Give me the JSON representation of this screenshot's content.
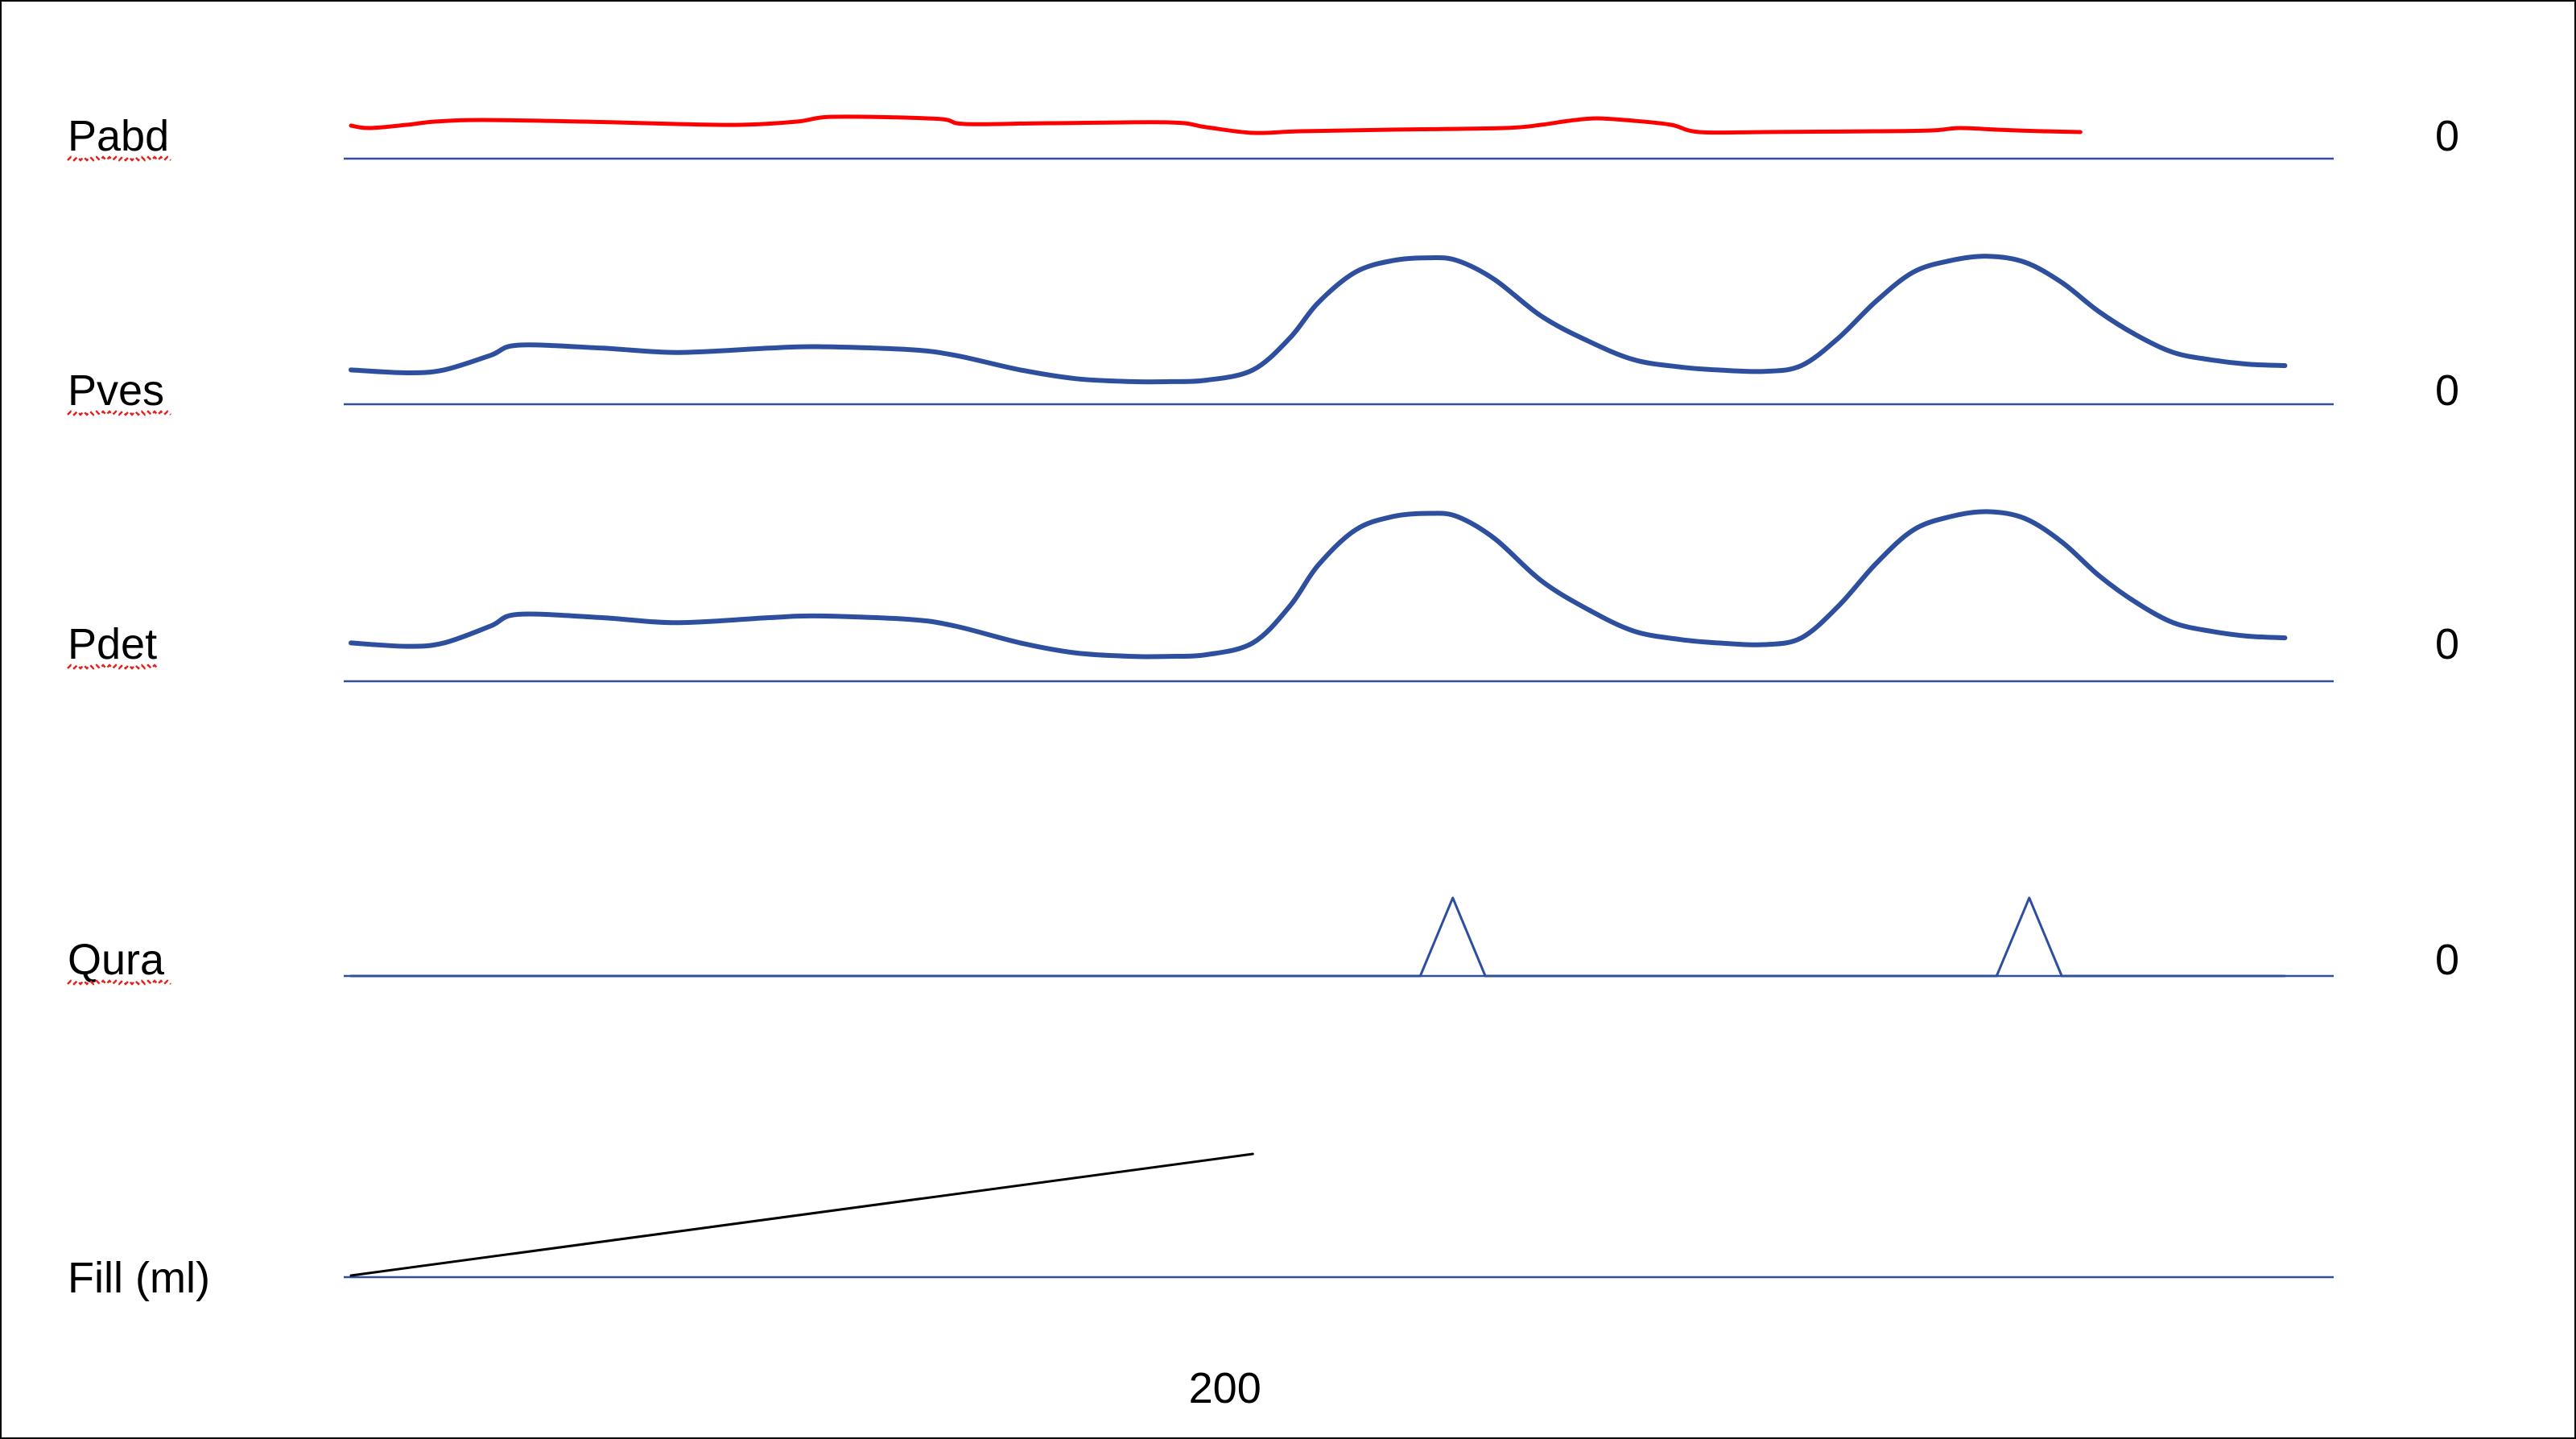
{
  "chart_data": {
    "type": "line",
    "tracks": [
      {
        "name": "Pabd",
        "baseline_label": "0",
        "color": "#ff0000",
        "underline": true,
        "values": [
          [
            0,
            0.62
          ],
          [
            0.02,
            0.56
          ],
          [
            0.06,
            0.64
          ],
          [
            0.09,
            0.72
          ],
          [
            0.14,
            0.76
          ],
          [
            0.25,
            0.72
          ],
          [
            0.35,
            0.66
          ],
          [
            0.42,
            0.64
          ],
          [
            0.48,
            0.72
          ],
          [
            0.52,
            0.84
          ],
          [
            0.63,
            0.79
          ],
          [
            0.66,
            0.66
          ],
          [
            0.75,
            0.68
          ],
          [
            0.88,
            0.7
          ],
          [
            0.92,
            0.58
          ],
          [
            0.97,
            0.44
          ],
          [
            1.02,
            0.48
          ],
          [
            1.12,
            0.52
          ],
          [
            1.24,
            0.56
          ],
          [
            1.28,
            0.64
          ],
          [
            1.31,
            0.74
          ],
          [
            1.34,
            0.8
          ],
          [
            1.38,
            0.74
          ],
          [
            1.42,
            0.64
          ],
          [
            1.45,
            0.46
          ],
          [
            1.52,
            0.46
          ],
          [
            1.64,
            0.48
          ],
          [
            1.7,
            0.5
          ],
          [
            1.73,
            0.56
          ],
          [
            1.77,
            0.52
          ],
          [
            1.82,
            0.48
          ],
          [
            1.86,
            0.46
          ]
        ]
      },
      {
        "name": "Pves",
        "baseline_label": "0",
        "color": "#2e4f9e",
        "underline": true,
        "values": [
          [
            0,
            0.18
          ],
          [
            0.06,
            0.16
          ],
          [
            0.1,
            0.18
          ],
          [
            0.15,
            0.28
          ],
          [
            0.18,
            0.35
          ],
          [
            0.27,
            0.33
          ],
          [
            0.35,
            0.3
          ],
          [
            0.45,
            0.33
          ],
          [
            0.5,
            0.34
          ],
          [
            0.6,
            0.32
          ],
          [
            0.65,
            0.28
          ],
          [
            0.72,
            0.18
          ],
          [
            0.78,
            0.12
          ],
          [
            0.84,
            0.1
          ],
          [
            0.88,
            0.1
          ],
          [
            0.92,
            0.11
          ],
          [
            0.97,
            0.18
          ],
          [
            1.01,
            0.4
          ],
          [
            1.04,
            0.64
          ],
          [
            1.08,
            0.85
          ],
          [
            1.12,
            0.93
          ],
          [
            1.16,
            0.95
          ],
          [
            1.19,
            0.93
          ],
          [
            1.23,
            0.8
          ],
          [
            1.28,
            0.55
          ],
          [
            1.33,
            0.38
          ],
          [
            1.38,
            0.25
          ],
          [
            1.43,
            0.2
          ],
          [
            1.47,
            0.18
          ],
          [
            1.52,
            0.17
          ],
          [
            1.56,
            0.21
          ],
          [
            1.6,
            0.4
          ],
          [
            1.64,
            0.65
          ],
          [
            1.68,
            0.85
          ],
          [
            1.72,
            0.93
          ],
          [
            1.76,
            0.96
          ],
          [
            1.8,
            0.92
          ],
          [
            1.84,
            0.78
          ],
          [
            1.88,
            0.58
          ],
          [
            1.92,
            0.42
          ],
          [
            1.96,
            0.3
          ],
          [
            2.0,
            0.25
          ],
          [
            2.04,
            0.22
          ],
          [
            2.08,
            0.21
          ]
        ]
      },
      {
        "name": "Pdet",
        "baseline_label": "0",
        "color": "#2e4f9e",
        "underline": true,
        "values": [
          [
            0,
            0.18
          ],
          [
            0.06,
            0.16
          ],
          [
            0.1,
            0.18
          ],
          [
            0.15,
            0.28
          ],
          [
            0.18,
            0.35
          ],
          [
            0.27,
            0.33
          ],
          [
            0.35,
            0.3
          ],
          [
            0.45,
            0.33
          ],
          [
            0.5,
            0.34
          ],
          [
            0.6,
            0.32
          ],
          [
            0.65,
            0.28
          ],
          [
            0.72,
            0.18
          ],
          [
            0.78,
            0.12
          ],
          [
            0.84,
            0.1
          ],
          [
            0.88,
            0.1
          ],
          [
            0.92,
            0.11
          ],
          [
            0.97,
            0.18
          ],
          [
            1.01,
            0.4
          ],
          [
            1.04,
            0.64
          ],
          [
            1.08,
            0.85
          ],
          [
            1.12,
            0.93
          ],
          [
            1.16,
            0.95
          ],
          [
            1.19,
            0.93
          ],
          [
            1.23,
            0.8
          ],
          [
            1.28,
            0.55
          ],
          [
            1.33,
            0.38
          ],
          [
            1.38,
            0.25
          ],
          [
            1.43,
            0.2
          ],
          [
            1.47,
            0.18
          ],
          [
            1.52,
            0.17
          ],
          [
            1.56,
            0.21
          ],
          [
            1.6,
            0.4
          ],
          [
            1.64,
            0.65
          ],
          [
            1.68,
            0.85
          ],
          [
            1.72,
            0.93
          ],
          [
            1.76,
            0.96
          ],
          [
            1.8,
            0.92
          ],
          [
            1.84,
            0.78
          ],
          [
            1.88,
            0.58
          ],
          [
            1.92,
            0.42
          ],
          [
            1.96,
            0.3
          ],
          [
            2.0,
            0.25
          ],
          [
            2.04,
            0.22
          ],
          [
            2.08,
            0.21
          ]
        ]
      },
      {
        "name": "Qura",
        "baseline_label": "0",
        "color": "#2e4f9e",
        "underline": true,
        "values": [
          [
            0,
            0
          ],
          [
            1.15,
            0
          ],
          [
            1.185,
            1
          ],
          [
            1.22,
            0
          ],
          [
            1.77,
            0
          ],
          [
            1.805,
            1
          ],
          [
            1.84,
            0
          ],
          [
            2.08,
            0
          ]
        ]
      },
      {
        "name": "Fill (ml)",
        "baseline_label": "",
        "color": "#000000",
        "underline": false,
        "values": [
          [
            0,
            0
          ],
          [
            0.97,
            1
          ]
        ]
      }
    ],
    "xlim": [
      0,
      2.08
    ],
    "x_tick_label": "200",
    "x_tick_value": 0.94,
    "baseline_color": "#2e4f9e",
    "grid": false,
    "legend": "none"
  }
}
